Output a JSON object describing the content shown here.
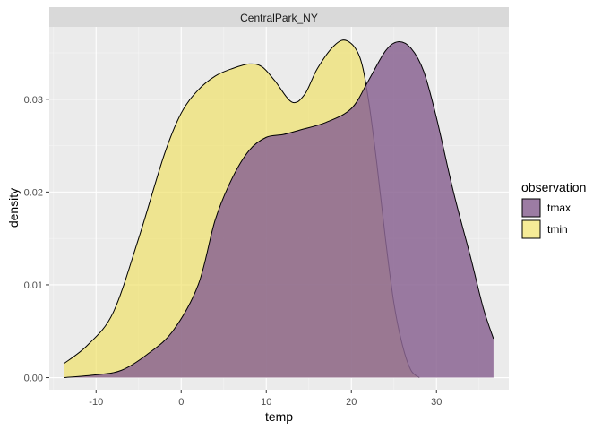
{
  "chart_data": {
    "type": "area",
    "subtype": "density",
    "facet_label": "CentralPark_NY",
    "xlabel": "temp",
    "ylabel": "density",
    "xlim": [
      -15.5,
      38.5
    ],
    "ylim": [
      -0.0013,
      0.0378
    ],
    "x_ticks": [
      -10,
      0,
      10,
      20,
      30
    ],
    "y_ticks": [
      0.0,
      0.01,
      0.02,
      0.03
    ],
    "y_tick_labels": [
      "0.00",
      "0.01",
      "0.02",
      "0.03"
    ],
    "grid": true,
    "legend": {
      "title": "observation",
      "position": "right"
    },
    "series": [
      {
        "name": "tmin",
        "color": "#f0e160",
        "opacity": 0.65,
        "points": [
          [
            -13.8,
            0.0015
          ],
          [
            -11,
            0.0035
          ],
          [
            -8,
            0.007
          ],
          [
            -5,
            0.015
          ],
          [
            -2,
            0.024
          ],
          [
            0,
            0.0285
          ],
          [
            2,
            0.031
          ],
          [
            4,
            0.0325
          ],
          [
            6,
            0.0333
          ],
          [
            8,
            0.0338
          ],
          [
            9.5,
            0.0335
          ],
          [
            11,
            0.032
          ],
          [
            13,
            0.0297
          ],
          [
            14.5,
            0.0305
          ],
          [
            16,
            0.0333
          ],
          [
            18,
            0.0358
          ],
          [
            19.5,
            0.0363
          ],
          [
            21,
            0.0345
          ],
          [
            22,
            0.03
          ],
          [
            23,
            0.023
          ],
          [
            24,
            0.015
          ],
          [
            25,
            0.008
          ],
          [
            26,
            0.0035
          ],
          [
            27,
            0.0008
          ],
          [
            28,
            0.0
          ]
        ]
      },
      {
        "name": "tmax",
        "color": "#8b6593",
        "opacity": 0.85,
        "points": [
          [
            -13.8,
            0.0
          ],
          [
            -10,
            0.0003
          ],
          [
            -7,
            0.0008
          ],
          [
            -4,
            0.0025
          ],
          [
            -1,
            0.005
          ],
          [
            2,
            0.01
          ],
          [
            4,
            0.017
          ],
          [
            6,
            0.0215
          ],
          [
            8,
            0.0245
          ],
          [
            10,
            0.0259
          ],
          [
            12,
            0.0262
          ],
          [
            14,
            0.0267
          ],
          [
            17,
            0.0275
          ],
          [
            20,
            0.029
          ],
          [
            22,
            0.032
          ],
          [
            24,
            0.0352
          ],
          [
            25.5,
            0.0362
          ],
          [
            27,
            0.0355
          ],
          [
            28.5,
            0.033
          ],
          [
            30,
            0.028
          ],
          [
            32,
            0.02
          ],
          [
            34,
            0.013
          ],
          [
            35.5,
            0.0075
          ],
          [
            36.7,
            0.0042
          ]
        ]
      }
    ]
  }
}
